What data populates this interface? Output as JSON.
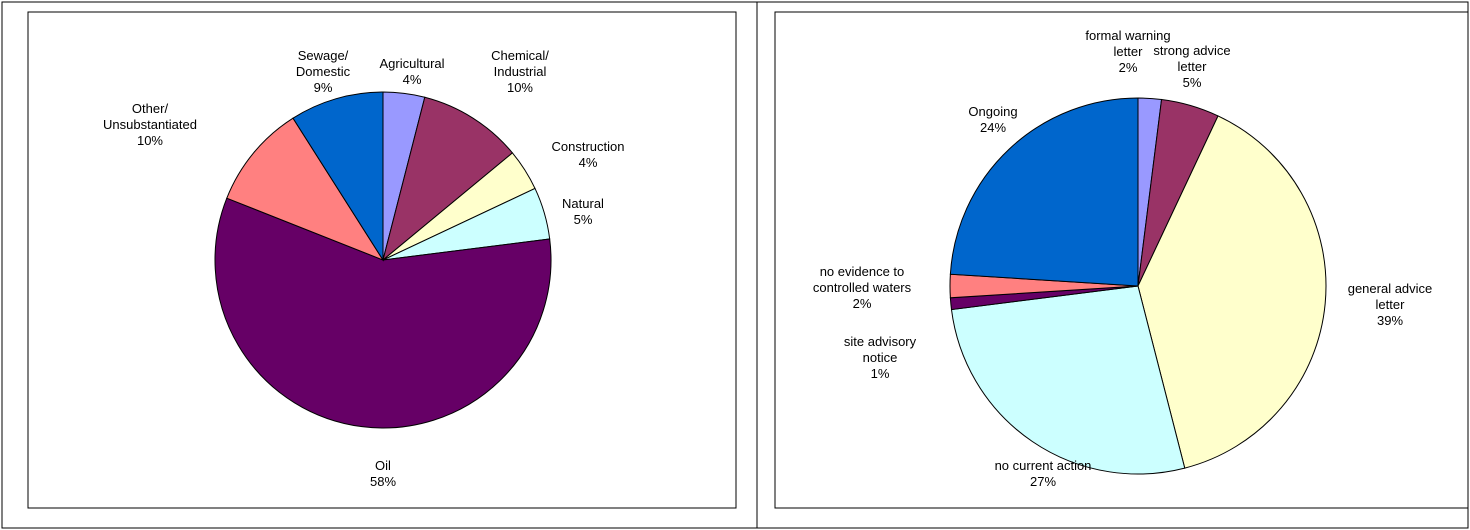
{
  "chart_data": [
    {
      "type": "pie",
      "categories": [
        "Agricultural",
        "Chemical/\nIndustrial",
        "Construction",
        "Natural",
        "Oil",
        "Other/\nUnsubstantiated",
        "Sewage/\nDomestic"
      ],
      "values": [
        4,
        10,
        4,
        5,
        58,
        10,
        9
      ],
      "value_labels": [
        "4%",
        "10%",
        "4%",
        "5%",
        "58%",
        "10%",
        "9%"
      ],
      "colors": [
        "#9999ff",
        "#993366",
        "#ffffcc",
        "#ccffff",
        "#660066",
        "#ff8080",
        "#0066cc"
      ]
    },
    {
      "type": "pie",
      "categories": [
        "formal warning\nletter",
        "strong advice\nletter",
        "general advice\nletter",
        "no current action",
        "site advisory\nnotice",
        "no evidence to\ncontrolled waters",
        "Ongoing"
      ],
      "values": [
        2,
        5,
        39,
        27,
        1,
        2,
        24
      ],
      "value_labels": [
        "2%",
        "5%",
        "39%",
        "27%",
        "1%",
        "2%",
        "24%"
      ],
      "colors": [
        "#9999ff",
        "#993366",
        "#ffffcc",
        "#ccffff",
        "#660066",
        "#ff8080",
        "#0066cc"
      ]
    }
  ]
}
